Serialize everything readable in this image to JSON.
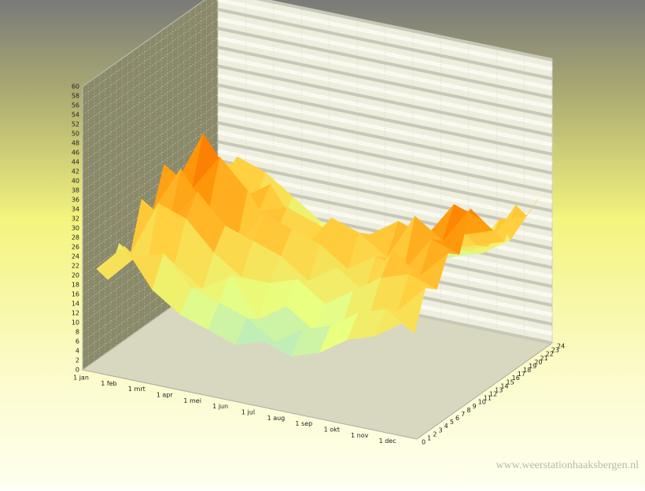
{
  "chart_data": {
    "type": "surface3d",
    "categories": [
      "1 jan",
      "1 feb",
      "1 mrt",
      "1 apr",
      "1 mei",
      "1 jun",
      "1 jul",
      "1 aug",
      "1 sep",
      "1 okt",
      "1 nov",
      "1 dec"
    ],
    "hourticks": [
      0,
      1,
      2,
      3,
      4,
      5,
      6,
      7,
      8,
      9,
      10,
      11,
      12,
      13,
      14,
      15,
      16,
      17,
      18,
      19,
      20,
      21,
      22,
      23,
      24
    ],
    "hourlim": [
      0,
      24
    ],
    "hours": [
      0,
      2,
      4,
      6,
      8,
      10,
      12,
      14,
      16,
      18,
      20,
      22,
      24
    ],
    "zlim": [
      0,
      60
    ],
    "zticks": [
      0,
      2,
      4,
      6,
      8,
      10,
      12,
      14,
      16,
      18,
      20,
      22,
      24,
      26,
      28,
      30,
      32,
      34,
      36,
      38,
      40,
      42,
      44,
      46,
      48,
      50,
      52,
      54,
      56,
      58,
      60
    ],
    "z": [
      [
        22,
        18,
        24,
        20,
        30,
        26,
        34,
        28,
        24,
        30,
        20,
        26,
        22
      ],
      [
        28,
        24,
        20,
        32,
        26,
        36,
        30,
        40,
        28,
        24,
        30,
        26,
        22
      ],
      [
        20,
        26,
        22,
        30,
        34,
        28,
        38,
        32,
        26,
        22,
        28,
        24,
        20
      ],
      [
        16,
        20,
        18,
        24,
        28,
        22,
        32,
        26,
        30,
        20,
        24,
        18,
        16
      ],
      [
        14,
        18,
        22,
        20,
        26,
        30,
        24,
        28,
        22,
        18,
        20,
        16,
        14
      ],
      [
        12,
        16,
        14,
        20,
        24,
        28,
        22,
        26,
        20,
        16,
        18,
        14,
        12
      ],
      [
        14,
        12,
        18,
        22,
        20,
        26,
        30,
        24,
        22,
        18,
        16,
        14,
        12
      ],
      [
        12,
        16,
        14,
        18,
        24,
        22,
        28,
        26,
        20,
        18,
        14,
        16,
        12
      ],
      [
        14,
        18,
        16,
        22,
        20,
        26,
        24,
        30,
        22,
        20,
        16,
        18,
        14
      ],
      [
        18,
        22,
        20,
        26,
        30,
        24,
        34,
        28,
        26,
        22,
        20,
        18,
        16
      ],
      [
        20,
        24,
        22,
        28,
        26,
        32,
        30,
        36,
        28,
        24,
        22,
        26,
        20
      ],
      [
        24,
        20,
        28,
        26,
        32,
        30,
        38,
        34,
        30,
        26,
        32,
        28,
        30
      ]
    ],
    "grid": true
  },
  "watermark": "www.weerstationhaaksbergen.nl"
}
